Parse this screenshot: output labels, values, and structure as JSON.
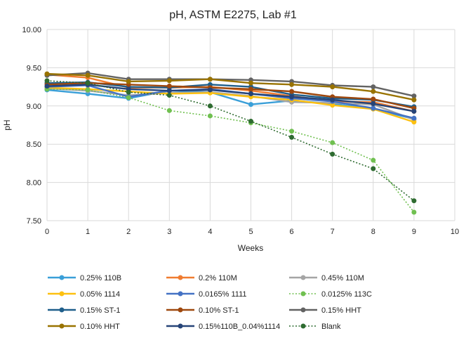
{
  "chart_data": {
    "type": "line",
    "title": "pH, ASTM E2275, Lab #1",
    "xlabel": "Weeks",
    "ylabel": "pH",
    "xlim": [
      0,
      10
    ],
    "ylim": [
      7.5,
      10.0
    ],
    "xticks": [
      "0",
      "1",
      "2",
      "3",
      "4",
      "5",
      "6",
      "7",
      "8",
      "9",
      "10"
    ],
    "yticks": [
      "7.50",
      "8.00",
      "8.50",
      "9.00",
      "9.50",
      "10.00"
    ],
    "grid": true,
    "legend_position": "bottom",
    "x": [
      0,
      1,
      2,
      3,
      4,
      5,
      6,
      7,
      8,
      9
    ],
    "series": [
      {
        "name": "0.25% 110B",
        "color": "#3a9fd8",
        "dash": false,
        "values": [
          9.21,
          9.16,
          9.1,
          9.2,
          9.18,
          9.02,
          9.07,
          9.03,
          8.96,
          8.83
        ]
      },
      {
        "name": "0.2% 110M",
        "color": "#f07c30",
        "dash": false,
        "values": [
          9.41,
          9.37,
          9.24,
          9.24,
          9.25,
          9.2,
          9.13,
          9.06,
          9.05,
          8.93
        ]
      },
      {
        "name": "0.45% 110M",
        "color": "#a5a5a5",
        "dash": false,
        "values": [
          9.23,
          9.2,
          9.14,
          9.17,
          9.18,
          9.13,
          9.05,
          9.04,
          9.02,
          8.82
        ]
      },
      {
        "name": "0.05% 1114",
        "color": "#fdc010",
        "dash": false,
        "values": [
          9.24,
          9.22,
          9.19,
          9.16,
          9.17,
          9.12,
          9.08,
          9.01,
          8.96,
          8.79
        ]
      },
      {
        "name": "0.0165% 1111",
        "color": "#4472c4",
        "dash": false,
        "values": [
          9.25,
          9.27,
          9.12,
          9.2,
          9.22,
          9.16,
          9.1,
          9.06,
          8.97,
          8.84
        ]
      },
      {
        "name": "0.0125% 113C",
        "color": "#70c050",
        "dash": true,
        "values": [
          9.22,
          9.21,
          9.11,
          8.94,
          8.87,
          8.78,
          8.67,
          8.52,
          8.29,
          7.61
        ]
      },
      {
        "name": "0.15% ST-1",
        "color": "#1f5f8b",
        "dash": false,
        "values": [
          9.3,
          9.31,
          9.25,
          9.24,
          9.28,
          9.25,
          9.15,
          9.1,
          9.08,
          8.99
        ]
      },
      {
        "name": "0.10% ST-1",
        "color": "#9e480e",
        "dash": false,
        "values": [
          9.28,
          9.3,
          9.28,
          9.26,
          9.24,
          9.22,
          9.19,
          9.12,
          9.09,
          8.97
        ]
      },
      {
        "name": "0.15% HHT",
        "color": "#636363",
        "dash": false,
        "values": [
          9.4,
          9.43,
          9.35,
          9.35,
          9.35,
          9.34,
          9.32,
          9.27,
          9.25,
          9.13
        ]
      },
      {
        "name": "0.10% HHT",
        "color": "#997300",
        "dash": false,
        "values": [
          9.42,
          9.4,
          9.32,
          9.33,
          9.35,
          9.3,
          9.28,
          9.25,
          9.19,
          9.08
        ]
      },
      {
        "name": "0.15%110B_0.04%1114",
        "color": "#264478",
        "dash": false,
        "values": [
          9.26,
          9.28,
          9.22,
          9.2,
          9.21,
          9.16,
          9.12,
          9.08,
          9.03,
          8.93
        ]
      },
      {
        "name": "Blank",
        "color": "#2e6b30",
        "dash": true,
        "values": [
          9.33,
          9.3,
          9.18,
          9.14,
          9.0,
          8.8,
          8.59,
          8.37,
          8.18,
          7.76
        ]
      }
    ]
  }
}
